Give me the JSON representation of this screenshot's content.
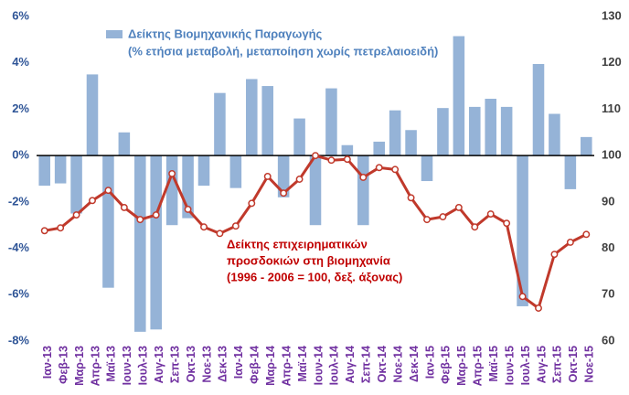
{
  "chart_data": {
    "type": "bar",
    "categories": [
      "Ιαν-13",
      "Φεβ-13",
      "Μαρ-13",
      "Απρ-13",
      "Μαϊ-13",
      "Ιουν-13",
      "Ιουλ-13",
      "Αυγ-13",
      "Σεπ-13",
      "Οκτ-13",
      "Νοε-13",
      "Δεκ-13",
      "Ιαν-14",
      "Φεβ-14",
      "Μαρ-14",
      "Απρ-14",
      "Μαϊ-14",
      "Ιουν-14",
      "Ιουλ-14",
      "Αυγ-14",
      "Σεπ-14",
      "Οκτ-14",
      "Νοε-14",
      "Δεκ-14",
      "Ιαν-15",
      "Φεβ-15",
      "Μαρ-15",
      "Απρ-15",
      "Μαϊ-15",
      "Ιουν-15",
      "Ιουλ-15",
      "Αυγ-15",
      "Σεπ-15",
      "Οκτ-15",
      "Νοε-15"
    ],
    "series": [
      {
        "name": "Δείκτης Βιομηχανικής Παραγωγής",
        "type": "bar",
        "color": "#95b3d7",
        "values": [
          -1.3,
          -1.2,
          -2.5,
          3.5,
          -5.7,
          1.0,
          -7.6,
          -7.5,
          -3.0,
          -2.7,
          -1.3,
          2.7,
          -1.4,
          3.3,
          3.0,
          -1.8,
          1.6,
          -3.0,
          2.9,
          0.45,
          -3.0,
          0.6,
          1.95,
          1.1,
          -1.1,
          2.05,
          5.15,
          2.1,
          2.45,
          2.1,
          -6.5,
          3.95,
          1.8,
          -1.45,
          0.8
        ]
      },
      {
        "type": "line",
        "axis": "y2",
        "color": "#c0392b",
        "values": [
          83.8,
          84.4,
          87.2,
          90.3,
          92.5,
          88.8,
          86.2,
          87.2,
          96.1,
          88.4,
          84.6,
          83.2,
          84.8,
          89.7,
          95.5,
          91.9,
          94.9,
          100,
          99,
          99.2,
          95.3,
          97.4,
          97,
          90.9,
          86.2,
          86.8,
          88.8,
          84.6,
          87.4,
          85.4,
          69.6,
          67.1,
          78.7,
          81.3,
          83
        ]
      }
    ],
    "annotations": [
      "(% ετήσια μεταβολή, μεταποίηση χωρίς πετρελαιοειδή)",
      "Δείκτης επιχειρηματικών",
      "προσδοκιών στη βιομηχανία",
      "(1996 - 2006 = 100, δεξ. άξονας)"
    ],
    "ylim": [
      -8,
      6
    ],
    "yticks": [
      {
        "value": -8,
        "label": "-8%"
      },
      {
        "value": -6,
        "label": "-6%"
      },
      {
        "value": -4,
        "label": "-4%"
      },
      {
        "value": -2,
        "label": "-2%"
      },
      {
        "value": 0,
        "label": "0%"
      },
      {
        "value": 2,
        "label": "2%"
      },
      {
        "value": 4,
        "label": "4%"
      },
      {
        "value": 6,
        "label": "6%"
      }
    ],
    "y2lim": [
      60,
      130
    ],
    "y2ticks": [
      60,
      70,
      80,
      90,
      100,
      110,
      120,
      130
    ],
    "grid": false
  }
}
